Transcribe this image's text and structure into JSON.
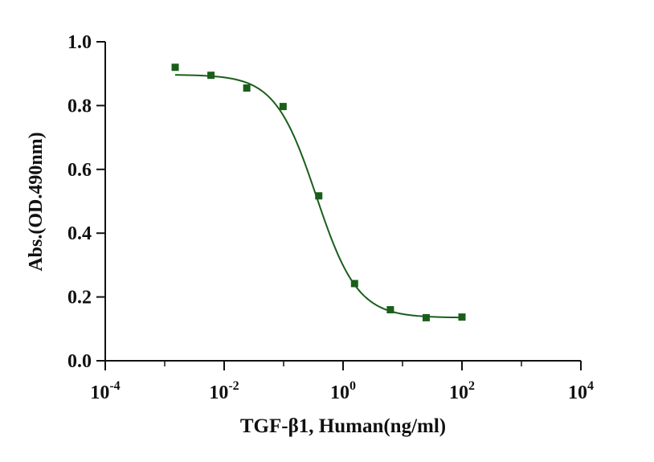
{
  "chart_data": {
    "type": "scatter",
    "title": "",
    "xlabel": "TGF-β1, Human(ng/ml)",
    "ylabel": "Abs.(OD.490nm)",
    "xscale": "log10",
    "xlim_exp": [
      -4,
      4
    ],
    "x_tick_labels": [
      {
        "base": "10",
        "exp": "-4"
      },
      {
        "base": "10",
        "exp": "-2"
      },
      {
        "base": "10",
        "exp": "0"
      },
      {
        "base": "10",
        "exp": "2"
      },
      {
        "base": "10",
        "exp": "4"
      }
    ],
    "ylim": [
      0,
      1.0
    ],
    "y_ticks": [
      "0.0",
      "0.2",
      "0.4",
      "0.6",
      "0.8",
      "1.0"
    ],
    "series": [
      {
        "name": "TGF-β1, Human",
        "marker": "square",
        "x": [
          0.0015,
          0.006,
          0.024,
          0.098,
          0.39,
          1.56,
          6.25,
          25,
          100
        ],
        "y": [
          0.92,
          0.895,
          0.855,
          0.797,
          0.517,
          0.242,
          0.16,
          0.135,
          0.137
        ]
      }
    ],
    "fit": {
      "model": "4PL",
      "top": 0.897,
      "bottom": 0.135,
      "log_ec50": -0.45,
      "hill": 1.25,
      "x_range": [
        0.0015,
        100
      ]
    },
    "color": "#1a5e1a",
    "grid": false
  }
}
